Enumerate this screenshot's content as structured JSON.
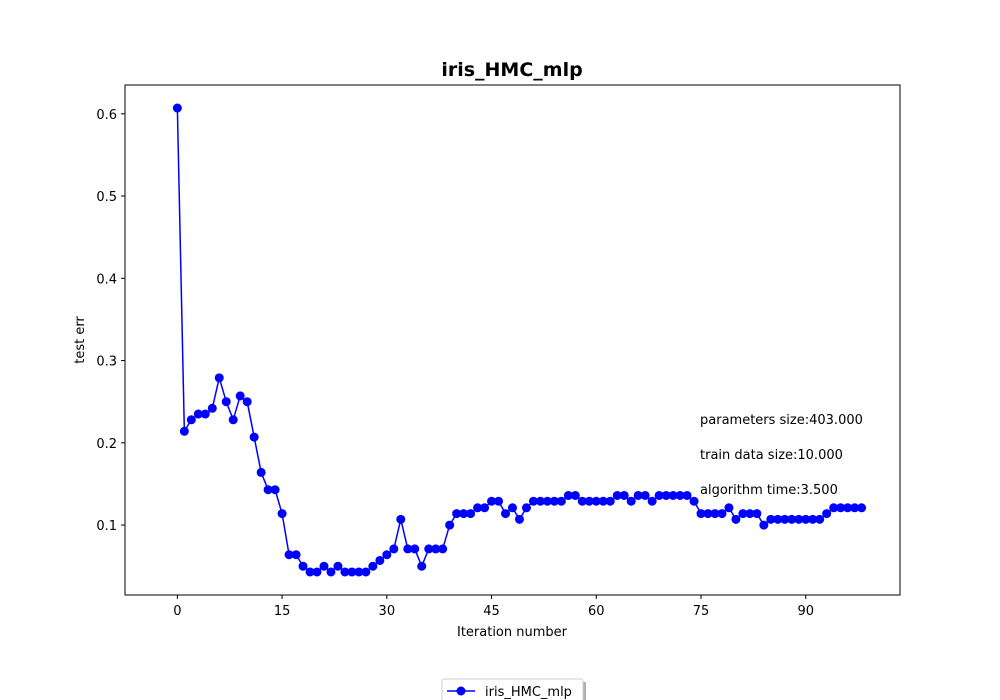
{
  "chart_data": {
    "type": "line",
    "title": "iris_HMC_mlp",
    "xlabel": "Iteration number",
    "ylabel": "test err",
    "xlim": [
      -7.5,
      103.5
    ],
    "ylim": [
      0.015,
      0.635
    ],
    "xticks": [
      0,
      15,
      30,
      45,
      60,
      75,
      90
    ],
    "yticks": [
      0.1,
      0.2,
      0.3,
      0.4,
      0.5,
      0.6
    ],
    "xtick_labels": [
      "0",
      "15",
      "30",
      "45",
      "60",
      "75",
      "90"
    ],
    "ytick_labels": [
      "0.1",
      "0.2",
      "0.3",
      "0.4",
      "0.5",
      "0.6"
    ],
    "grid": false,
    "legend_position": "bottom-center, below plot",
    "series": [
      {
        "name": "iris_HMC_mlp",
        "color": "#0000ff",
        "marker": "circle",
        "x": [
          0,
          1,
          2,
          3,
          4,
          5,
          6,
          7,
          8,
          9,
          10,
          11,
          12,
          13,
          14,
          15,
          16,
          17,
          18,
          19,
          20,
          21,
          22,
          23,
          24,
          25,
          26,
          27,
          28,
          29,
          30,
          31,
          32,
          33,
          34,
          35,
          36,
          37,
          38,
          39,
          40,
          41,
          42,
          43,
          44,
          45,
          46,
          47,
          48,
          49,
          50,
          51,
          52,
          53,
          54,
          55,
          56,
          57,
          58,
          59,
          60,
          61,
          62,
          63,
          64,
          65,
          66,
          67,
          68,
          69,
          70,
          71,
          72,
          73,
          74,
          75,
          76,
          77,
          78,
          79,
          80,
          81,
          82,
          83,
          84,
          85,
          86,
          87,
          88,
          89,
          90,
          91,
          92,
          93,
          94,
          95,
          96,
          97,
          98
        ],
        "y": [
          0.607,
          0.214,
          0.228,
          0.235,
          0.235,
          0.242,
          0.279,
          0.25,
          0.228,
          0.257,
          0.25,
          0.207,
          0.164,
          0.143,
          0.143,
          0.114,
          0.064,
          0.064,
          0.05,
          0.043,
          0.043,
          0.05,
          0.043,
          0.05,
          0.043,
          0.043,
          0.043,
          0.043,
          0.05,
          0.057,
          0.064,
          0.071,
          0.107,
          0.071,
          0.071,
          0.05,
          0.071,
          0.071,
          0.071,
          0.1,
          0.114,
          0.114,
          0.114,
          0.121,
          0.121,
          0.129,
          0.129,
          0.114,
          0.121,
          0.107,
          0.121,
          0.129,
          0.129,
          0.129,
          0.129,
          0.129,
          0.136,
          0.136,
          0.129,
          0.129,
          0.129,
          0.129,
          0.129,
          0.136,
          0.136,
          0.129,
          0.136,
          0.136,
          0.129,
          0.136,
          0.136,
          0.136,
          0.136,
          0.136,
          0.129,
          0.114,
          0.114,
          0.114,
          0.114,
          0.121,
          0.107,
          0.114,
          0.114,
          0.114,
          0.1,
          0.107,
          0.107,
          0.107,
          0.107,
          0.107,
          0.107,
          0.107,
          0.107,
          0.114,
          0.121,
          0.121,
          0.121,
          0.121,
          0.121
        ]
      }
    ],
    "annotations": [
      "parameters size:403.000",
      "train data size:10.000",
      "algorithm time:3.500"
    ]
  }
}
